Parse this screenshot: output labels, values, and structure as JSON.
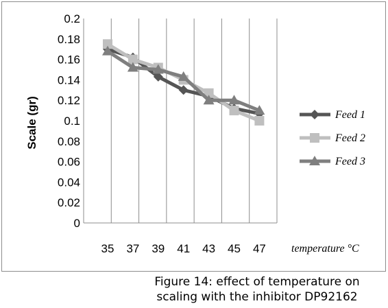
{
  "chart_data": {
    "type": "line",
    "x": [
      "35",
      "37",
      "39",
      "41",
      "43",
      "45",
      "47"
    ],
    "series": [
      {
        "name": "Feed 1",
        "values": [
          0.17,
          0.162,
          0.143,
          0.13,
          0.124,
          0.112,
          0.107
        ],
        "color": "#555555",
        "marker": "diamond"
      },
      {
        "name": "Feed 2",
        "values": [
          0.175,
          0.16,
          0.152,
          0.14,
          0.127,
          0.11,
          0.1
        ],
        "color": "#bfbfbf",
        "marker": "square"
      },
      {
        "name": "Feed 3",
        "values": [
          0.168,
          0.152,
          0.15,
          0.143,
          0.12,
          0.12,
          0.11
        ],
        "color": "#7f7f7f",
        "marker": "triangle"
      }
    ],
    "yticks": [
      "0",
      "0.02",
      "0.04",
      "0.06",
      "0.08",
      "0.1",
      "0.12",
      "0.14",
      "0.16",
      "0.18",
      "0.2"
    ],
    "ylim": [
      0,
      0.2
    ],
    "ylabel": "Scale (gr)",
    "xlabel": "temperature °C",
    "grid": "vertical",
    "legend": "right"
  },
  "caption": "Figure 14: effect of temperature on scaling with the inhibitor  DP92162"
}
